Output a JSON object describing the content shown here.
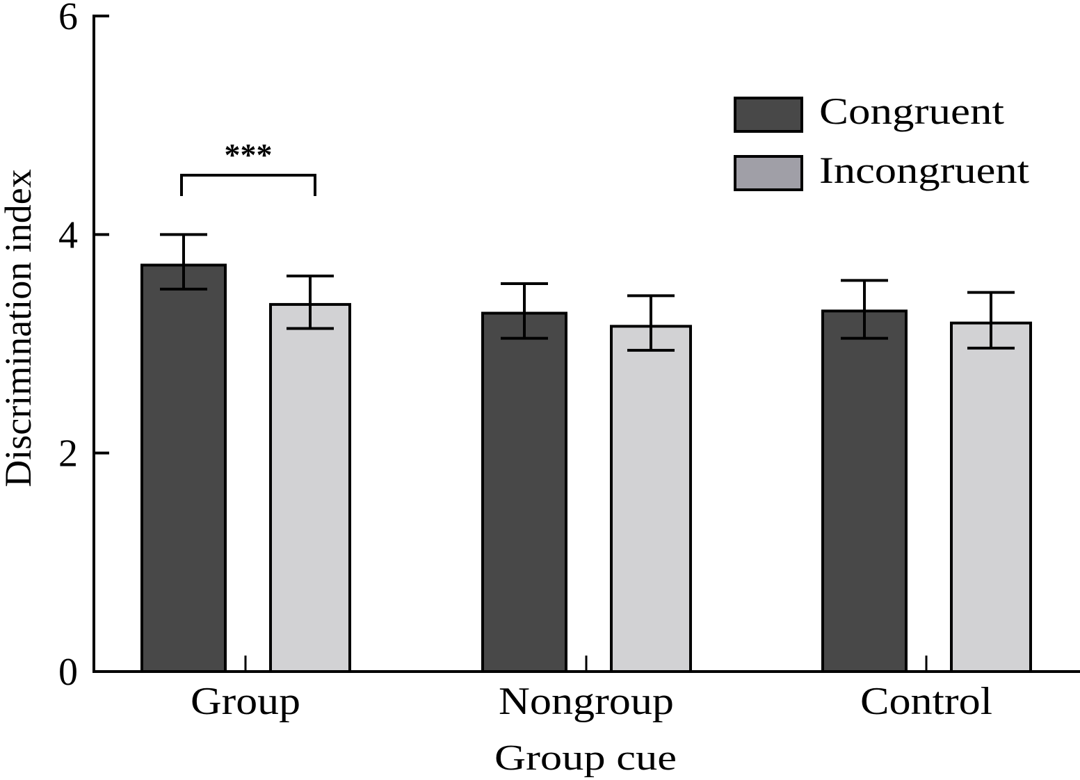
{
  "chart_data": {
    "type": "bar",
    "title": "",
    "xlabel": "Group cue",
    "ylabel": "Discrimination index",
    "ylim": [
      0,
      6
    ],
    "yticks": [
      "0",
      "2",
      "4",
      "6"
    ],
    "yticks_values": [
      0,
      2,
      4,
      6
    ],
    "grid": false,
    "legend_position": "top-right",
    "categories": [
      "Group",
      "Nongroup",
      "Control"
    ],
    "series": [
      {
        "name": "Congruent",
        "color": "#484848",
        "legend_color": "#484848",
        "values": [
          3.72,
          3.28,
          3.3
        ],
        "error_upper": [
          4.0,
          3.55,
          3.58
        ],
        "error_lower": [
          3.5,
          3.05,
          3.05
        ]
      },
      {
        "name": "Incongruent",
        "color": "#d2d2d4",
        "legend_color": "#a09fa7",
        "values": [
          3.36,
          3.16,
          3.19
        ],
        "error_upper": [
          3.62,
          3.44,
          3.47
        ],
        "error_lower": [
          3.14,
          2.94,
          2.96
        ]
      }
    ],
    "annotations": [
      {
        "text": "***",
        "category": "Group",
        "between": [
          "Congruent",
          "Incongruent"
        ]
      }
    ]
  }
}
